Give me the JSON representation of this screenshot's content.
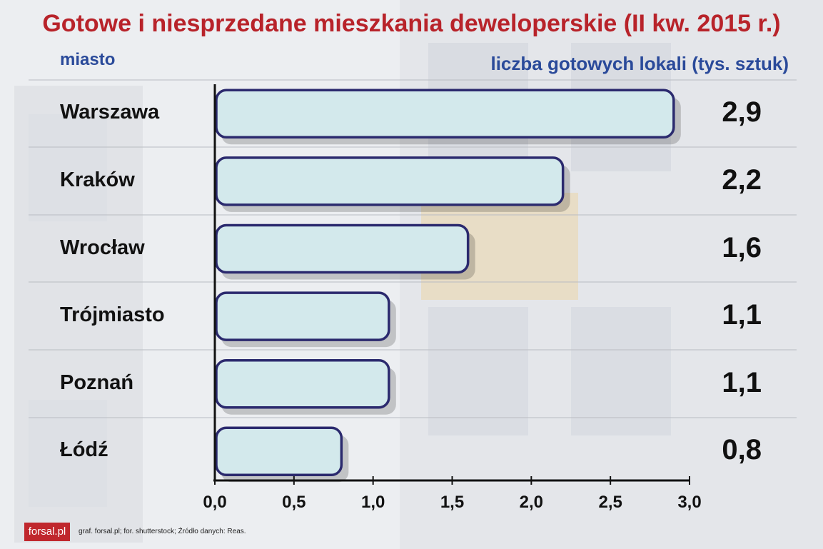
{
  "title": "Gotowe i niesprzedane mieszkania deweloperskie (II kw. 2015 r.)",
  "header_left": "miasto",
  "header_right": "liczba gotowych lokali (tys. sztuk)",
  "footer": {
    "logo": "forsal.pl",
    "credits": "graf. forsal.pl; for. shutterstock;  Źródło danych:  Reas."
  },
  "chart_data": {
    "type": "bar",
    "orientation": "horizontal",
    "categories": [
      "Warszawa",
      "Kraków",
      "Wrocław",
      "Trójmiasto",
      "Poznań",
      "Łódź"
    ],
    "values": [
      2.9,
      2.2,
      1.6,
      1.1,
      1.1,
      0.8
    ],
    "value_labels": [
      "2,9",
      "2,2",
      "1,6",
      "1,1",
      "1,1",
      "0,8"
    ],
    "xlim": [
      0,
      3
    ],
    "x_ticks": [
      "0,0",
      "0,5",
      "1,0",
      "1,5",
      "2,0",
      "2,5",
      "3,0"
    ],
    "bar_fill": "#d3e9ec",
    "bar_stroke": "#2b2a6e",
    "grid": false
  },
  "colors": {
    "title": "#b8232a",
    "headers": "#2a4a9a"
  }
}
